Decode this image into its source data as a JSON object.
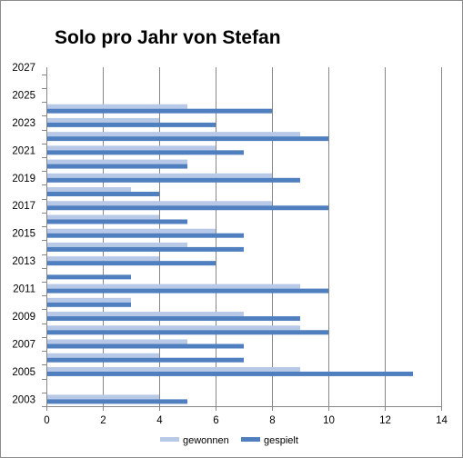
{
  "chart_data": {
    "type": "bar",
    "orientation": "horizontal",
    "title": "Solo pro Jahr von Stefan",
    "categories": [
      "2003",
      "2004",
      "2005",
      "2006",
      "2007",
      "2008",
      "2009",
      "2010",
      "2011",
      "2012",
      "2013",
      "2014",
      "2015",
      "2016",
      "2017",
      "2018",
      "2019",
      "2020",
      "2021",
      "2022",
      "2023",
      "2024",
      "2025",
      "2026",
      "2027"
    ],
    "y_tick_labels": [
      "2003",
      "2005",
      "2007",
      "2009",
      "2011",
      "2013",
      "2015",
      "2017",
      "2019",
      "2021",
      "2023",
      "2025",
      "2027"
    ],
    "x_tick_labels": [
      "0",
      "2",
      "4",
      "6",
      "8",
      "10",
      "12",
      "14"
    ],
    "xlim": [
      0,
      14
    ],
    "grid": true,
    "legend_position": "bottom",
    "series": [
      {
        "name": "gewonnen",
        "color": "#b8c9e8",
        "values": [
          4,
          0,
          9,
          4,
          5,
          9,
          7,
          3,
          9,
          0,
          4,
          5,
          6,
          4,
          8,
          3,
          8,
          5,
          6,
          9,
          4,
          5,
          0,
          0,
          0
        ]
      },
      {
        "name": "gespielt",
        "color": "#4f7fbe",
        "values": [
          5,
          0,
          13,
          7,
          7,
          10,
          9,
          3,
          10,
          3,
          6,
          7,
          7,
          5,
          10,
          4,
          9,
          5,
          7,
          10,
          6,
          8,
          0,
          0,
          0
        ]
      }
    ]
  }
}
